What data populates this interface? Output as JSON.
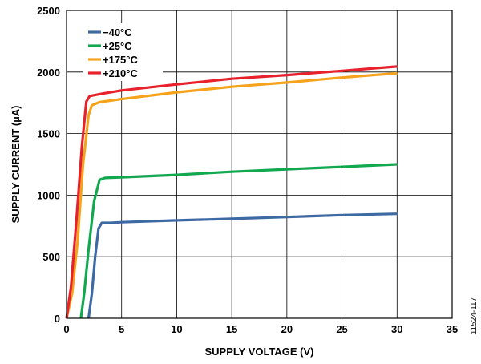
{
  "figure_id": "11524-117",
  "chart_data": {
    "type": "line",
    "xlabel": "SUPPLY VOLTAGE (V)",
    "ylabel": "SUPPLY CURRENT (µA)",
    "xlim": [
      0,
      35
    ],
    "ylim": [
      0,
      2500
    ],
    "xticks": [
      0,
      5,
      10,
      15,
      20,
      25,
      30,
      35
    ],
    "yticks": [
      0,
      500,
      1000,
      1500,
      2000,
      2500
    ],
    "grid": true,
    "legend_position": "top-left",
    "series": [
      {
        "name": "−40°C",
        "color": "#3e6aa4",
        "points": [
          [
            2.0,
            0
          ],
          [
            2.3,
            200
          ],
          [
            2.6,
            500
          ],
          [
            2.9,
            730
          ],
          [
            3.2,
            775
          ],
          [
            4,
            775
          ],
          [
            5,
            780
          ],
          [
            10,
            795
          ],
          [
            15,
            808
          ],
          [
            20,
            822
          ],
          [
            25,
            838
          ],
          [
            30,
            848
          ]
        ]
      },
      {
        "name": "+25°C",
        "color": "#11a84f",
        "points": [
          [
            1.3,
            0
          ],
          [
            1.6,
            200
          ],
          [
            2.0,
            560
          ],
          [
            2.5,
            950
          ],
          [
            3.0,
            1125
          ],
          [
            3.5,
            1140
          ],
          [
            5,
            1145
          ],
          [
            10,
            1165
          ],
          [
            15,
            1190
          ],
          [
            20,
            1210
          ],
          [
            25,
            1230
          ],
          [
            30,
            1250
          ]
        ]
      },
      {
        "name": "+175°C",
        "color": "#f6a31c",
        "points": [
          [
            0,
            0
          ],
          [
            0.5,
            200
          ],
          [
            1.0,
            620
          ],
          [
            1.5,
            1250
          ],
          [
            2.0,
            1650
          ],
          [
            2.3,
            1730
          ],
          [
            3,
            1755
          ],
          [
            5,
            1780
          ],
          [
            10,
            1835
          ],
          [
            15,
            1880
          ],
          [
            20,
            1915
          ],
          [
            25,
            1955
          ],
          [
            30,
            1990
          ]
        ]
      },
      {
        "name": "+210°C",
        "color": "#e8222c",
        "points": [
          [
            0,
            0
          ],
          [
            0.4,
            250
          ],
          [
            0.9,
            800
          ],
          [
            1.4,
            1400
          ],
          [
            1.8,
            1760
          ],
          [
            2.1,
            1805
          ],
          [
            3,
            1820
          ],
          [
            5,
            1850
          ],
          [
            10,
            1900
          ],
          [
            15,
            1945
          ],
          [
            20,
            1975
          ],
          [
            25,
            2010
          ],
          [
            30,
            2045
          ]
        ]
      }
    ]
  }
}
